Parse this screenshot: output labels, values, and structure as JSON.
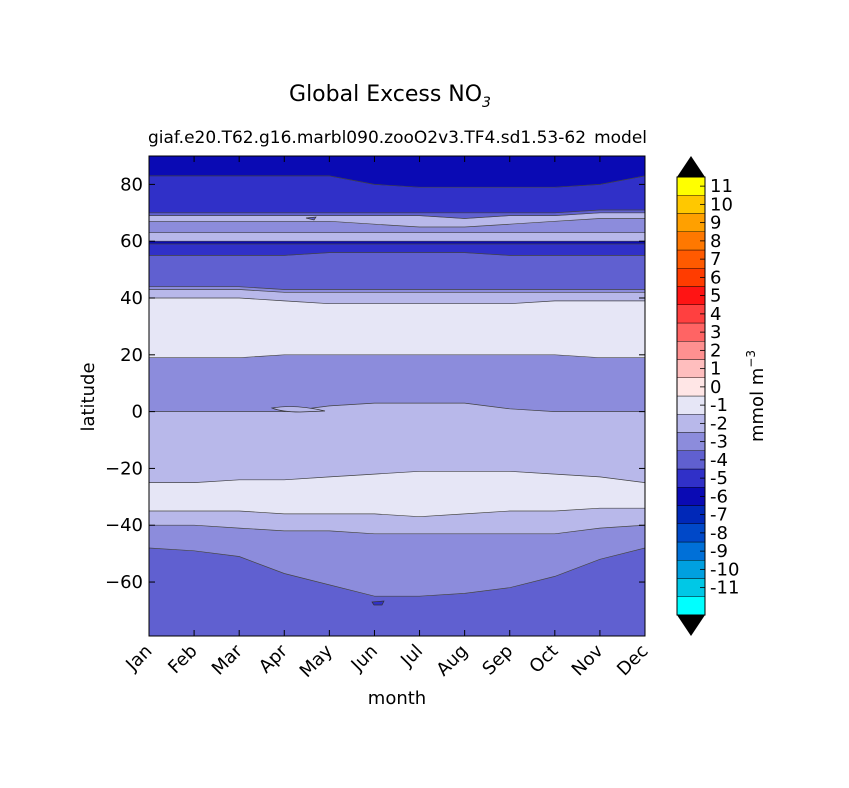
{
  "chart_data": {
    "type": "contourf",
    "title_main": "Global Excess NO",
    "title_sub": "3",
    "subtitle_left": "giaf.e20.T62.g16.marbl090.zooO2v3.TF4.sd1.53-62",
    "subtitle_right": "model",
    "xlabel": "month",
    "ylabel": "latitude",
    "x_ticks": [
      "Jan",
      "Feb",
      "Mar",
      "Apr",
      "May",
      "Jun",
      "Jul",
      "Aug",
      "Sep",
      "Oct",
      "Nov",
      "Dec"
    ],
    "y_ticks": [
      80,
      60,
      40,
      20,
      0,
      -20,
      -40,
      -60
    ],
    "y_tick_labels": [
      "80",
      "60",
      "40",
      "20",
      "0",
      "−20",
      "−40",
      "−60"
    ],
    "ylim": [
      -79,
      90
    ],
    "xlim": [
      0,
      11
    ],
    "colorbar": {
      "label": "mmol m",
      "label_exp": "−3",
      "levels": [
        -12,
        -11,
        -10,
        -9,
        -8,
        -7,
        -6,
        -5,
        -4,
        -3,
        -2,
        -1,
        0,
        1,
        2,
        3,
        4,
        5,
        6,
        7,
        8,
        9,
        10,
        11,
        12
      ],
      "tick_values": [
        11,
        10,
        9,
        8,
        7,
        6,
        5,
        4,
        3,
        2,
        1,
        0,
        -1,
        -2,
        -3,
        -4,
        -5,
        -6,
        -7,
        -8,
        -9,
        -10,
        -11
      ],
      "tick_labels": [
        "11",
        "10",
        "9",
        "8",
        "7",
        "6",
        "5",
        "4",
        "3",
        "2",
        "1",
        "0",
        "-1",
        "-2",
        "-3",
        "-4",
        "-5",
        "-6",
        "-7",
        "-8",
        "-9",
        "-10",
        "-11"
      ],
      "colors": [
        "#00ffff",
        "#00c8e6",
        "#00a0e0",
        "#0070d8",
        "#0048c8",
        "#0028b8",
        "#0a0ab4",
        "#3030c8",
        "#6060d0",
        "#8c8cdc",
        "#b8b8ea",
        "#e6e6f6",
        "#ffe6e6",
        "#ffbebe",
        "#ff9090",
        "#ff6464",
        "#ff4040",
        "#ff1414",
        "#ff3c00",
        "#ff5a00",
        "#ff7800",
        "#ffa000",
        "#ffc800",
        "#ffff00"
      ],
      "extend": "both"
    },
    "bands": [
      {
        "name": "south-deep",
        "level": -4,
        "color": "#6060d0",
        "lower": [
          -79,
          -79,
          -79,
          -79,
          -79,
          -79,
          -79,
          -79,
          -79,
          -79,
          -79,
          -79
        ],
        "upper": [
          -48,
          -49,
          -51,
          -57,
          -61,
          -65,
          -65,
          -64,
          -62,
          -58,
          -52,
          -48
        ]
      },
      {
        "name": "south-mid",
        "level": -3,
        "color": "#8c8cdc",
        "lower": [
          -48,
          -49,
          -51,
          -57,
          -61,
          -65,
          -65,
          -64,
          -62,
          -58,
          -52,
          -48
        ],
        "upper": [
          -40,
          -40,
          -41,
          -42,
          -42,
          -43,
          -43,
          -43,
          -43,
          -43,
          -41,
          -40
        ]
      },
      {
        "name": "south-light",
        "level": -2,
        "color": "#b8b8ea",
        "lower": [
          -40,
          -40,
          -41,
          -42,
          -42,
          -43,
          -43,
          -43,
          -43,
          -43,
          -41,
          -40
        ],
        "upper": [
          -35,
          -35,
          -35,
          -36,
          -36,
          -36,
          -37,
          -36,
          -35,
          -35,
          -34,
          -34
        ]
      },
      {
        "name": "subtropic-s",
        "level": -1,
        "color": "#e6e6f6",
        "lower": [
          -35,
          -35,
          -35,
          -36,
          -36,
          -36,
          -37,
          -36,
          -35,
          -35,
          -34,
          -34
        ],
        "upper": [
          -25,
          -25,
          -24,
          -24,
          -23,
          -22,
          -21,
          -21,
          -21,
          -22,
          -23,
          -25
        ]
      },
      {
        "name": "tropic",
        "level": -2,
        "color": "#b8b8ea",
        "lower": [
          -25,
          -25,
          -24,
          -24,
          -23,
          -22,
          -21,
          -21,
          -21,
          -22,
          -23,
          -25
        ],
        "upper": [
          0,
          0,
          0,
          0,
          2,
          3,
          3,
          3,
          1,
          0,
          0,
          0
        ]
      },
      {
        "name": "equator-north",
        "level": -3,
        "color": "#8c8cdc",
        "lower": [
          0,
          0,
          0,
          0,
          2,
          3,
          3,
          3,
          1,
          0,
          0,
          0
        ],
        "upper": [
          19,
          19,
          19,
          20,
          20,
          20,
          20,
          20,
          20,
          20,
          19,
          19
        ]
      },
      {
        "name": "subtropic-n",
        "level": -1,
        "color": "#e6e6f6",
        "lower": [
          19,
          19,
          19,
          20,
          20,
          20,
          20,
          20,
          20,
          20,
          19,
          19
        ],
        "upper": [
          40,
          40,
          40,
          39,
          38,
          38,
          38,
          38,
          38,
          39,
          39,
          39
        ]
      },
      {
        "name": "north-light",
        "level": -2,
        "color": "#b8b8ea",
        "lower": [
          40,
          40,
          40,
          39,
          38,
          38,
          38,
          38,
          38,
          39,
          39,
          39
        ],
        "upper": [
          43,
          43,
          43,
          42,
          42,
          42,
          42,
          42,
          42,
          42,
          42,
          42
        ]
      },
      {
        "name": "north-mid",
        "level": -3,
        "color": "#8c8cdc",
        "lower": [
          43,
          43,
          43,
          42,
          42,
          42,
          42,
          42,
          42,
          42,
          42,
          42
        ],
        "upper": [
          44,
          44,
          44,
          43,
          43,
          43,
          43,
          43,
          43,
          43,
          43,
          43
        ]
      },
      {
        "name": "north-deep",
        "level": -4,
        "color": "#6060d0",
        "lower": [
          44,
          44,
          44,
          43,
          43,
          43,
          43,
          43,
          43,
          43,
          43,
          43
        ],
        "upper": [
          55,
          55,
          55,
          55,
          56,
          56,
          56,
          56,
          55,
          55,
          55,
          55
        ]
      },
      {
        "name": "north-dark",
        "level": -5,
        "color": "#3030c8",
        "lower": [
          55,
          55,
          55,
          55,
          56,
          56,
          56,
          56,
          55,
          55,
          55,
          55
        ],
        "upper": [
          59,
          59,
          59,
          59,
          59,
          59,
          59,
          59,
          59,
          59,
          59,
          59
        ]
      },
      {
        "name": "north-darkest",
        "level": -6,
        "color": "#0a0ab4",
        "lower": [
          59,
          59,
          59,
          59,
          59,
          59,
          59,
          59,
          59,
          59,
          59,
          59
        ],
        "upper": [
          60,
          60,
          60,
          60,
          60,
          60,
          60,
          60,
          60,
          60,
          60,
          60
        ]
      },
      {
        "name": "arctic-light",
        "level": -2,
        "color": "#b8b8ea",
        "lower": [
          60,
          60,
          60,
          60,
          60,
          60,
          60,
          60,
          60,
          60,
          60,
          60
        ],
        "upper": [
          63,
          63,
          63,
          63,
          63,
          63,
          63,
          63,
          63,
          63,
          63,
          63
        ]
      },
      {
        "name": "arctic-mid",
        "level": -3,
        "color": "#8c8cdc",
        "lower": [
          63,
          63,
          63,
          63,
          63,
          63,
          63,
          63,
          63,
          63,
          63,
          63
        ],
        "upper": [
          67,
          67,
          67,
          67,
          67,
          66,
          65,
          65,
          66,
          67,
          68,
          68
        ]
      },
      {
        "name": "arctic-lighter",
        "level": -2,
        "color": "#b8b8ea",
        "lower": [
          67,
          67,
          67,
          67,
          67,
          66,
          65,
          65,
          66,
          67,
          68,
          68
        ],
        "upper": [
          69,
          69,
          69,
          69,
          69,
          69,
          69,
          68,
          69,
          69,
          70,
          70
        ]
      },
      {
        "name": "arctic-deep",
        "level": -4,
        "color": "#6060d0",
        "lower": [
          69,
          69,
          69,
          69,
          69,
          69,
          69,
          68,
          69,
          69,
          70,
          70
        ],
        "upper": [
          70,
          70,
          70,
          70,
          70,
          70,
          70,
          70,
          70,
          70,
          71,
          71
        ]
      },
      {
        "name": "polar-dark",
        "level": -5,
        "color": "#3030c8",
        "lower": [
          70,
          70,
          70,
          70,
          70,
          70,
          70,
          70,
          70,
          70,
          71,
          71
        ],
        "upper": [
          83,
          83,
          83,
          83,
          83,
          80,
          79,
          79,
          79,
          79,
          80,
          83
        ]
      },
      {
        "name": "polar-darkest",
        "level": -6,
        "color": "#0a0ab4",
        "lower": [
          83,
          83,
          83,
          83,
          83,
          80,
          79,
          79,
          79,
          79,
          80,
          83
        ],
        "upper": [
          90,
          90,
          90,
          90,
          90,
          90,
          90,
          90,
          90,
          90,
          90,
          90
        ]
      }
    ]
  }
}
